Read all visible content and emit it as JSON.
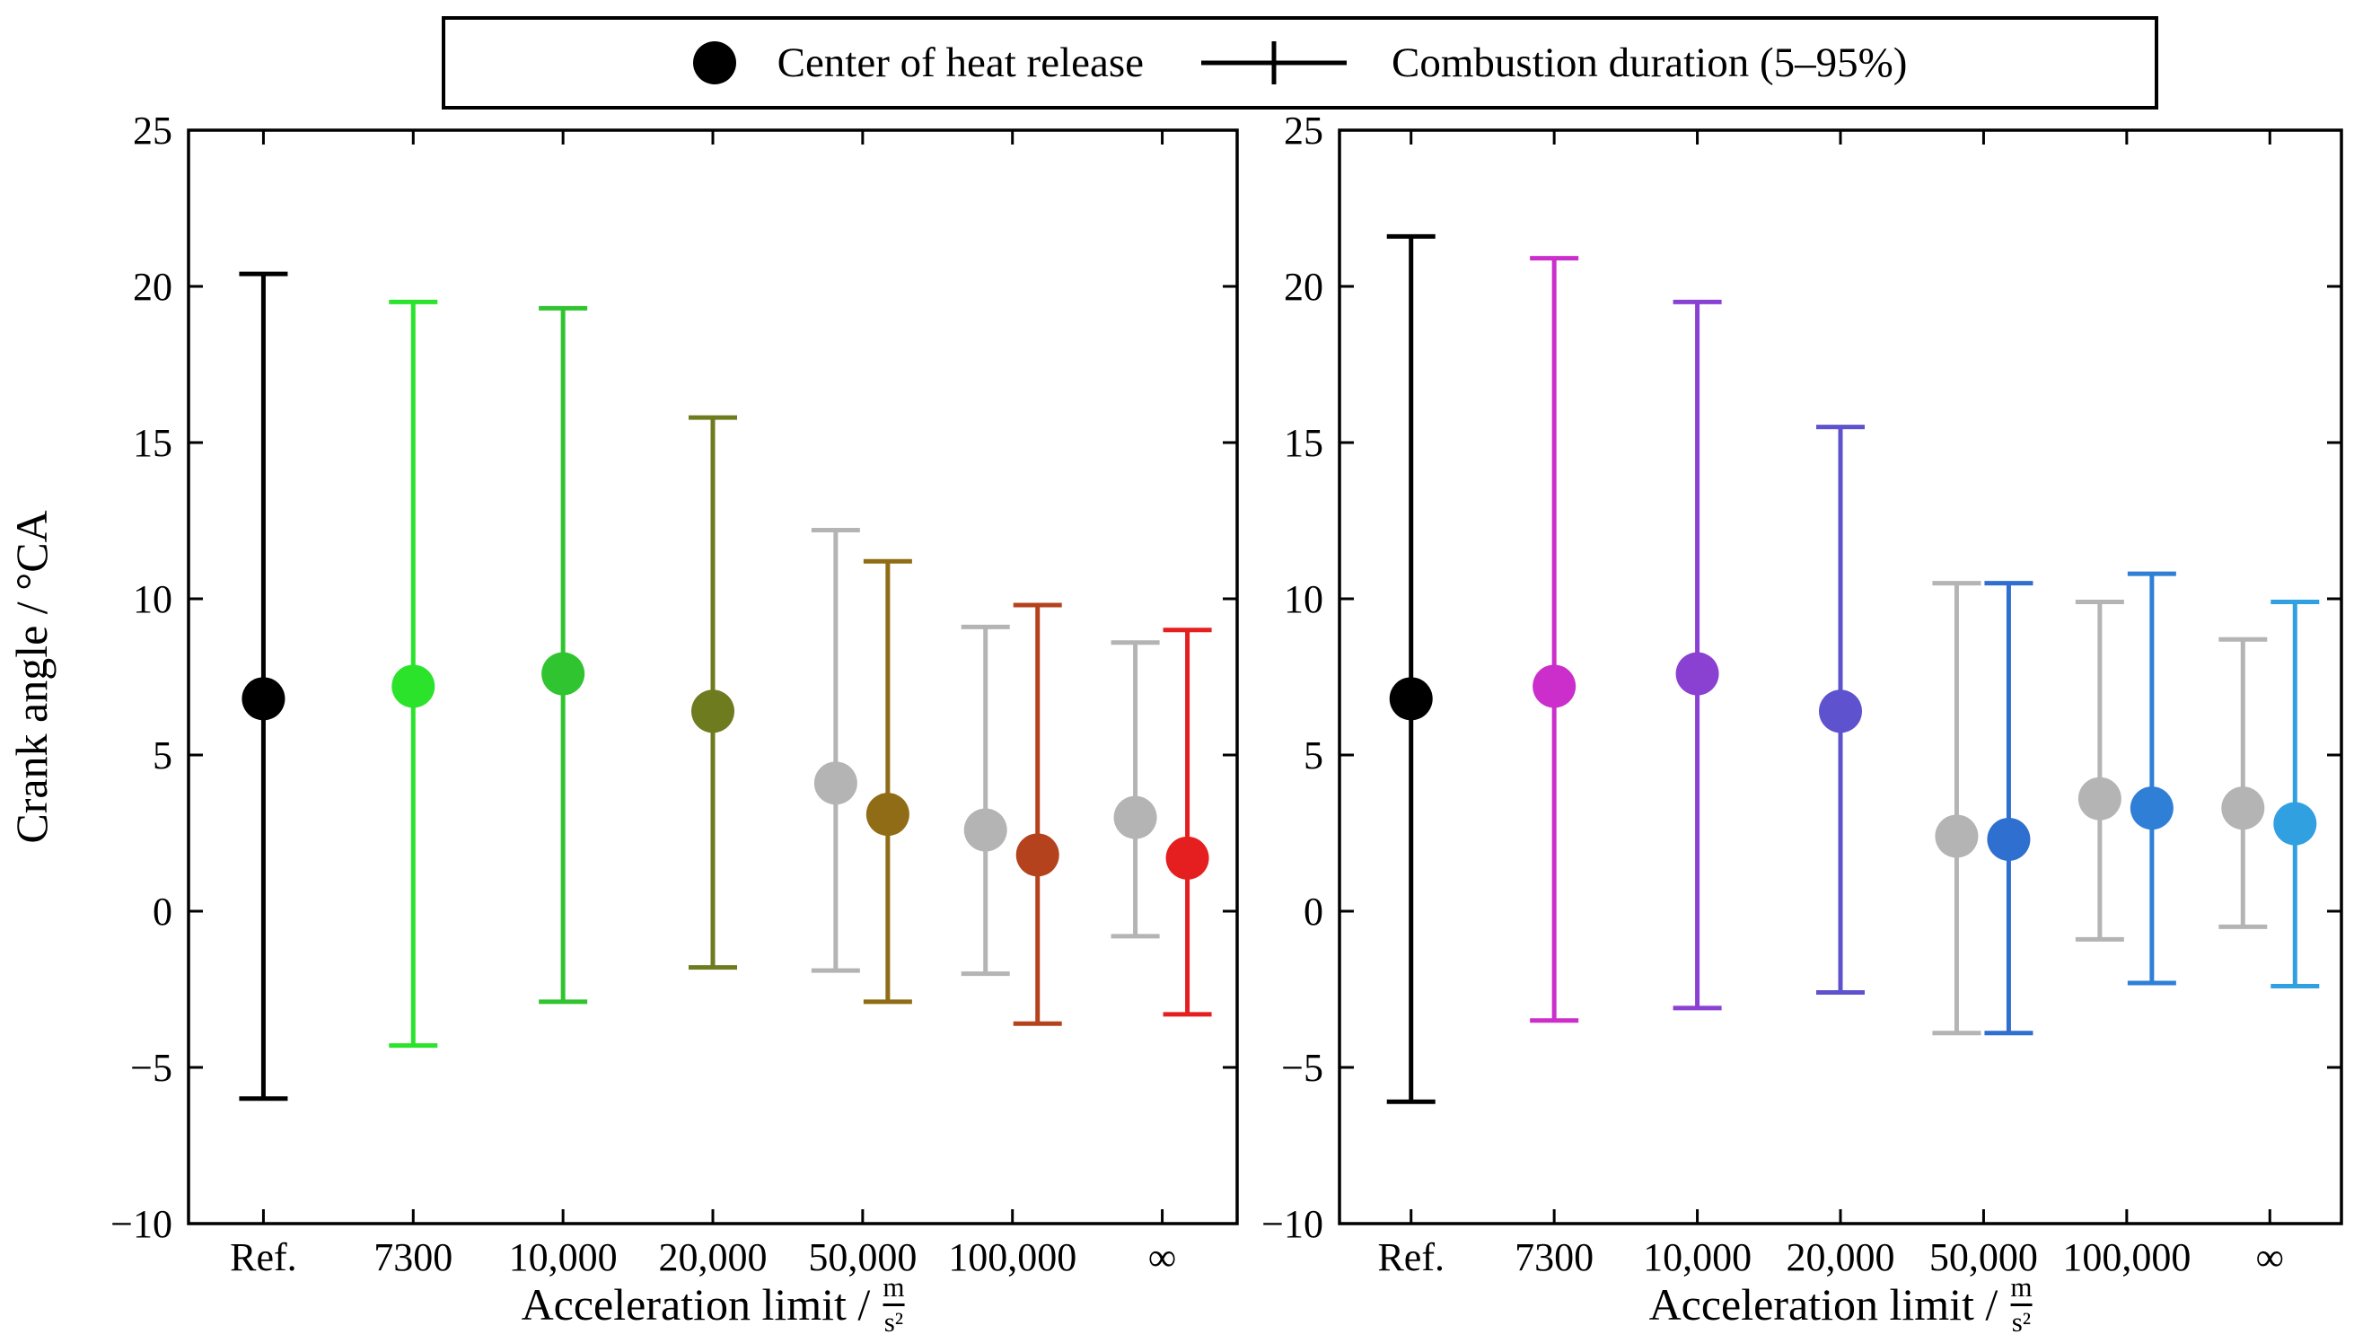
{
  "figure": {
    "background": "#ffffff",
    "ylabel": "Crank angle / °CA",
    "xlabel_prefix": "Acceleration limit /",
    "xlabel_frac_num": "m",
    "xlabel_frac_den": "s²"
  },
  "legend": {
    "items": [
      {
        "symbol": "filled-circle",
        "label": "Center of heat release"
      },
      {
        "symbol": "errorbar",
        "label": "Combustion duration (5–95%)"
      }
    ]
  },
  "chart_data": [
    {
      "type": "scatter",
      "panel": "left",
      "ylabel": "Crank angle / °CA",
      "xlabel": "Acceleration limit / m/s²",
      "ylim": [
        -10,
        25
      ],
      "yticks": [
        25,
        20,
        15,
        10,
        5,
        0,
        -5,
        -10
      ],
      "categories": [
        "Ref.",
        "7300",
        "10,000",
        "20,000",
        "50,000",
        "100,000",
        "∞"
      ],
      "points": [
        {
          "category": "Ref.",
          "ci": 0,
          "color": "#000000",
          "center": 6.8,
          "low": -6.0,
          "high": 20.4
        },
        {
          "category": "7300",
          "ci": 1,
          "color": "#2ce32c",
          "center": 7.2,
          "low": -4.3,
          "high": 19.5
        },
        {
          "category": "10,000",
          "ci": 2,
          "color": "#30c430",
          "center": 7.6,
          "low": -2.9,
          "high": 19.3
        },
        {
          "category": "20,000",
          "ci": 3,
          "color": "#6e7b1f",
          "center": 6.4,
          "low": -1.8,
          "high": 15.8
        },
        {
          "category": "50,000",
          "ci": 4,
          "color": "#b4b4b4",
          "center": 4.1,
          "low": -1.9,
          "high": 12.2
        },
        {
          "category": "50,000",
          "ci": 4,
          "color": "#8f6c15",
          "center": 3.1,
          "low": -2.9,
          "high": 11.2
        },
        {
          "category": "100,000",
          "ci": 5,
          "color": "#b4b4b4",
          "center": 2.6,
          "low": -2.0,
          "high": 9.1
        },
        {
          "category": "100,000",
          "ci": 5,
          "color": "#b4431d",
          "center": 1.8,
          "low": -3.6,
          "high": 9.8
        },
        {
          "category": "∞",
          "ci": 6,
          "color": "#b4b4b4",
          "center": 3.0,
          "low": -0.8,
          "high": 8.6
        },
        {
          "category": "∞",
          "ci": 6,
          "color": "#e51f1f",
          "center": 1.7,
          "low": -3.3,
          "high": 9.0
        }
      ]
    },
    {
      "type": "scatter",
      "panel": "right",
      "ylabel": "",
      "xlabel": "Acceleration limit / m/s²",
      "ylim": [
        -10,
        25
      ],
      "yticks": [
        25,
        20,
        15,
        10,
        5,
        0,
        -5,
        -10
      ],
      "categories": [
        "Ref.",
        "7300",
        "10,000",
        "20,000",
        "50,000",
        "100,000",
        "∞"
      ],
      "points": [
        {
          "category": "Ref.",
          "ci": 0,
          "color": "#000000",
          "center": 6.8,
          "low": -6.1,
          "high": 21.6
        },
        {
          "category": "7300",
          "ci": 1,
          "color": "#cb2ecb",
          "center": 7.2,
          "low": -3.5,
          "high": 20.9
        },
        {
          "category": "10,000",
          "ci": 2,
          "color": "#8a41d1",
          "center": 7.6,
          "low": -3.1,
          "high": 19.5
        },
        {
          "category": "20,000",
          "ci": 3,
          "color": "#5e52ce",
          "center": 6.4,
          "low": -2.6,
          "high": 15.5
        },
        {
          "category": "50,000",
          "ci": 4,
          "color": "#b4b4b4",
          "center": 2.4,
          "low": -3.9,
          "high": 10.5
        },
        {
          "category": "50,000",
          "ci": 4,
          "color": "#2f6fd0",
          "center": 2.3,
          "low": -3.9,
          "high": 10.5
        },
        {
          "category": "100,000",
          "ci": 5,
          "color": "#b4b4b4",
          "center": 3.6,
          "low": -0.9,
          "high": 9.9
        },
        {
          "category": "100,000",
          "ci": 5,
          "color": "#2f7fd6",
          "center": 3.3,
          "low": -2.3,
          "high": 10.8
        },
        {
          "category": "∞",
          "ci": 6,
          "color": "#b4b4b4",
          "center": 3.3,
          "low": -0.5,
          "high": 8.7
        },
        {
          "category": "∞",
          "ci": 6,
          "color": "#30a0e0",
          "center": 2.8,
          "low": -2.4,
          "high": 9.9
        }
      ]
    }
  ]
}
